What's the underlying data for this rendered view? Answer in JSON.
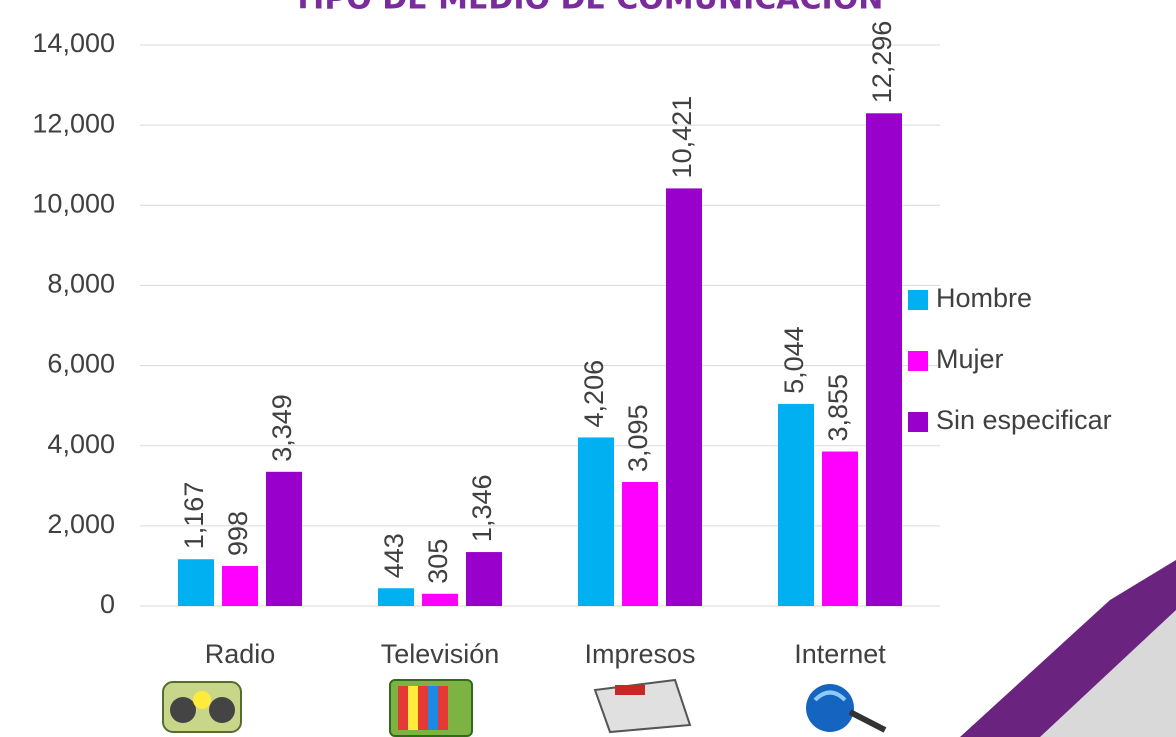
{
  "chart_data": {
    "type": "bar",
    "title": "TIPO DE MEDIO DE COMUNICACIÓN",
    "categories": [
      "Radio",
      "Televisión",
      "Impresos",
      "Internet"
    ],
    "series": [
      {
        "name": "Hombre",
        "color": "#00b0f0",
        "values": [
          1167,
          443,
          4206,
          5044
        ],
        "value_labels": [
          "1,167",
          "443",
          "4,206",
          "5,044"
        ]
      },
      {
        "name": "Mujer",
        "color": "#ff00ff",
        "values": [
          998,
          305,
          3095,
          3855
        ],
        "value_labels": [
          "998",
          "305",
          "3,095",
          "3,855"
        ]
      },
      {
        "name": "Sin especificar",
        "color": "#9900cc",
        "values": [
          3349,
          1346,
          10421,
          12296
        ],
        "value_labels": [
          "3,349",
          "1,346",
          "10,421",
          "12,296"
        ]
      }
    ],
    "ylim": [
      0,
      14000
    ],
    "yticks": [
      0,
      {
        "value": 2000,
        "label": "2,000"
      },
      {
        "value": 4000,
        "label": "4,000"
      },
      {
        "value": 6000,
        "label": "6,000"
      },
      {
        "value": 8000,
        "label": "8,000"
      },
      {
        "value": 10000,
        "label": "10,000"
      },
      {
        "value": 12000,
        "label": "12,000"
      },
      {
        "value": 14000,
        "label": "14,000"
      }
    ],
    "grid": true,
    "legend": "right"
  }
}
